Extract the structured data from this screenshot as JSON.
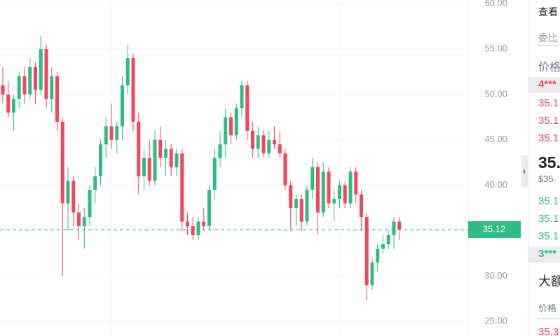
{
  "chart_data": {
    "type": "candlestick",
    "ylim": [
      23.4,
      60.4
    ],
    "yticks": [
      {
        "value": 25,
        "label": "25.00"
      },
      {
        "value": 30,
        "label": "30.00"
      },
      {
        "value": 35,
        "label": "35.00"
      },
      {
        "value": 40,
        "label": "40.00"
      },
      {
        "value": 45,
        "label": "45.00"
      },
      {
        "value": 50,
        "label": "50.00"
      },
      {
        "value": 55,
        "label": "55.00"
      },
      {
        "value": 60,
        "label": "60.00"
      }
    ],
    "up_color": "#2ebd85",
    "down_color": "#f6465d",
    "last_price": 35.12,
    "open": [
      51,
      50,
      48,
      49.5,
      52,
      50,
      53,
      50.5,
      55,
      49.5,
      52,
      47,
      38,
      40.5,
      37,
      35.5,
      36.5,
      39.5,
      41,
      44.5,
      46.5,
      45,
      46.5,
      51,
      54,
      47,
      41,
      43,
      40.5,
      45,
      43,
      44,
      42,
      43.5,
      36,
      35.5,
      34.5,
      36,
      35.5,
      39.5,
      43,
      44.5,
      47.5,
      45.5,
      48.5,
      51,
      46,
      44,
      45.5,
      43.5,
      45,
      44.5,
      43.5,
      40,
      37.5,
      38.5,
      36,
      39.5,
      42,
      37,
      41.5,
      38,
      38.5,
      40,
      38,
      41.5,
      39,
      36.5,
      29,
      31.5,
      33,
      33.5,
      34.5,
      36
    ],
    "high": [
      53,
      51.5,
      50,
      52.5,
      53,
      54,
      53.5,
      56.5,
      55.5,
      53,
      52.5,
      47.5,
      42,
      41,
      38,
      37.5,
      40,
      42,
      45,
      47.5,
      49,
      47,
      52,
      55.5,
      54.5,
      48,
      44,
      45,
      46,
      46.5,
      45,
      44.5,
      44,
      44,
      37,
      36.5,
      36.5,
      37.5,
      40,
      44,
      46,
      48.5,
      48,
      49,
      51.5,
      51.5,
      47,
      46.5,
      46,
      46,
      46.5,
      46,
      44,
      40.5,
      39,
      39,
      40,
      43,
      42.5,
      42.5,
      42,
      39.5,
      40.5,
      40.5,
      42,
      42,
      39.5,
      37,
      32,
      33.5,
      34.5,
      35,
      36.5,
      36.5
    ],
    "low": [
      49,
      47.5,
      46,
      48.5,
      49,
      49.5,
      49,
      50,
      48.5,
      48,
      46,
      30,
      35,
      35.5,
      34,
      33,
      35.5,
      38,
      40,
      43,
      44,
      43.5,
      45,
      50,
      46,
      39,
      39.5,
      40,
      40,
      42,
      41,
      41,
      41,
      35,
      34.5,
      34,
      34,
      35,
      35,
      38.5,
      42,
      43,
      44.5,
      45,
      47.5,
      45,
      43,
      43,
      43,
      43,
      44,
      43,
      39.5,
      35,
      35.5,
      35,
      35.5,
      38.5,
      34.5,
      36.5,
      37.5,
      36,
      37.5,
      37.5,
      37.5,
      38,
      35,
      27.3,
      28.5,
      30.5,
      32.5,
      33,
      33,
      34
    ],
    "close": [
      50,
      48,
      49.5,
      52,
      50,
      53,
      50.5,
      55,
      49.5,
      52,
      47,
      38,
      40.5,
      37,
      35.5,
      36.5,
      39.5,
      41,
      44.5,
      46.5,
      45,
      46.5,
      51,
      54,
      47,
      41,
      43,
      40.5,
      45,
      43,
      44,
      42,
      43.5,
      36,
      35.5,
      34.5,
      36,
      35.5,
      39.5,
      43,
      44.5,
      47.5,
      45.5,
      48.5,
      51,
      46,
      44,
      45.5,
      43.5,
      45,
      44.5,
      43.5,
      40,
      37.5,
      38.5,
      36,
      39.5,
      42,
      37,
      41.5,
      38,
      38.5,
      40,
      38,
      41.5,
      39,
      36.5,
      29,
      31.5,
      33,
      33.5,
      34.5,
      36,
      35.12
    ]
  },
  "panel": {
    "view": "查看",
    "ratio": "委比",
    "price_header": "价格",
    "ask_user": "4***",
    "asks": [
      "35.1",
      "35.1",
      "35.1"
    ],
    "mid_price": "35.",
    "mid_usd": "$35.",
    "bids": [
      "35.1",
      "35.1",
      "35.1"
    ],
    "bid_user": "3***",
    "large": "大额",
    "large_price_header": "价格",
    "large_row": "35.3"
  }
}
